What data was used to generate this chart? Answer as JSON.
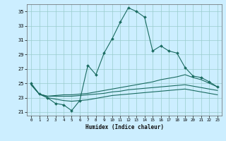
{
  "xlabel": "Humidex (Indice chaleur)",
  "bg_color": "#cceeff",
  "line_color": "#1a6b60",
  "grid_color": "#99cccc",
  "xlim": [
    -0.5,
    23.5
  ],
  "ylim": [
    20.5,
    36.0
  ],
  "yticks": [
    21,
    23,
    25,
    27,
    29,
    31,
    33,
    35
  ],
  "xticks": [
    0,
    1,
    2,
    3,
    4,
    5,
    6,
    7,
    8,
    9,
    10,
    11,
    12,
    13,
    14,
    15,
    16,
    17,
    18,
    19,
    20,
    21,
    22,
    23
  ],
  "line1_x": [
    0,
    1,
    2,
    3,
    4,
    5,
    6,
    7,
    8,
    9,
    10,
    11,
    12,
    13,
    14,
    15,
    16,
    17,
    18,
    19,
    20,
    21,
    22,
    23
  ],
  "line1_y": [
    25.0,
    23.5,
    23.0,
    22.2,
    22.0,
    21.2,
    22.6,
    27.5,
    26.2,
    29.2,
    31.2,
    33.5,
    35.5,
    35.0,
    34.2,
    29.5,
    30.2,
    29.5,
    29.2,
    27.2,
    26.0,
    25.8,
    25.2,
    24.5
  ],
  "line2_x": [
    0,
    1,
    2,
    3,
    4,
    5,
    6,
    7,
    8,
    9,
    10,
    11,
    12,
    13,
    14,
    15,
    16,
    17,
    18,
    19,
    20,
    21,
    22,
    23
  ],
  "line2_y": [
    24.8,
    23.5,
    23.2,
    23.3,
    23.4,
    23.4,
    23.5,
    23.6,
    23.8,
    24.0,
    24.2,
    24.4,
    24.6,
    24.8,
    25.0,
    25.2,
    25.5,
    25.7,
    25.9,
    26.2,
    25.8,
    25.5,
    25.0,
    24.5
  ],
  "line3_x": [
    0,
    1,
    2,
    3,
    4,
    5,
    6,
    7,
    8,
    9,
    10,
    11,
    12,
    13,
    14,
    15,
    16,
    17,
    18,
    19,
    20,
    21,
    22,
    23
  ],
  "line3_y": [
    24.8,
    23.5,
    23.2,
    23.2,
    23.2,
    23.2,
    23.3,
    23.4,
    23.5,
    23.6,
    23.8,
    23.9,
    24.1,
    24.2,
    24.3,
    24.4,
    24.5,
    24.6,
    24.7,
    24.8,
    24.6,
    24.4,
    24.2,
    24.0
  ],
  "line4_x": [
    0,
    1,
    2,
    3,
    4,
    5,
    6,
    7,
    8,
    9,
    10,
    11,
    12,
    13,
    14,
    15,
    16,
    17,
    18,
    19,
    20,
    21,
    22,
    23
  ],
  "line4_y": [
    24.8,
    23.5,
    23.0,
    22.8,
    22.6,
    22.5,
    22.6,
    22.7,
    22.9,
    23.1,
    23.3,
    23.4,
    23.5,
    23.6,
    23.7,
    23.8,
    23.9,
    24.0,
    24.1,
    24.2,
    24.0,
    23.8,
    23.6,
    23.4
  ]
}
